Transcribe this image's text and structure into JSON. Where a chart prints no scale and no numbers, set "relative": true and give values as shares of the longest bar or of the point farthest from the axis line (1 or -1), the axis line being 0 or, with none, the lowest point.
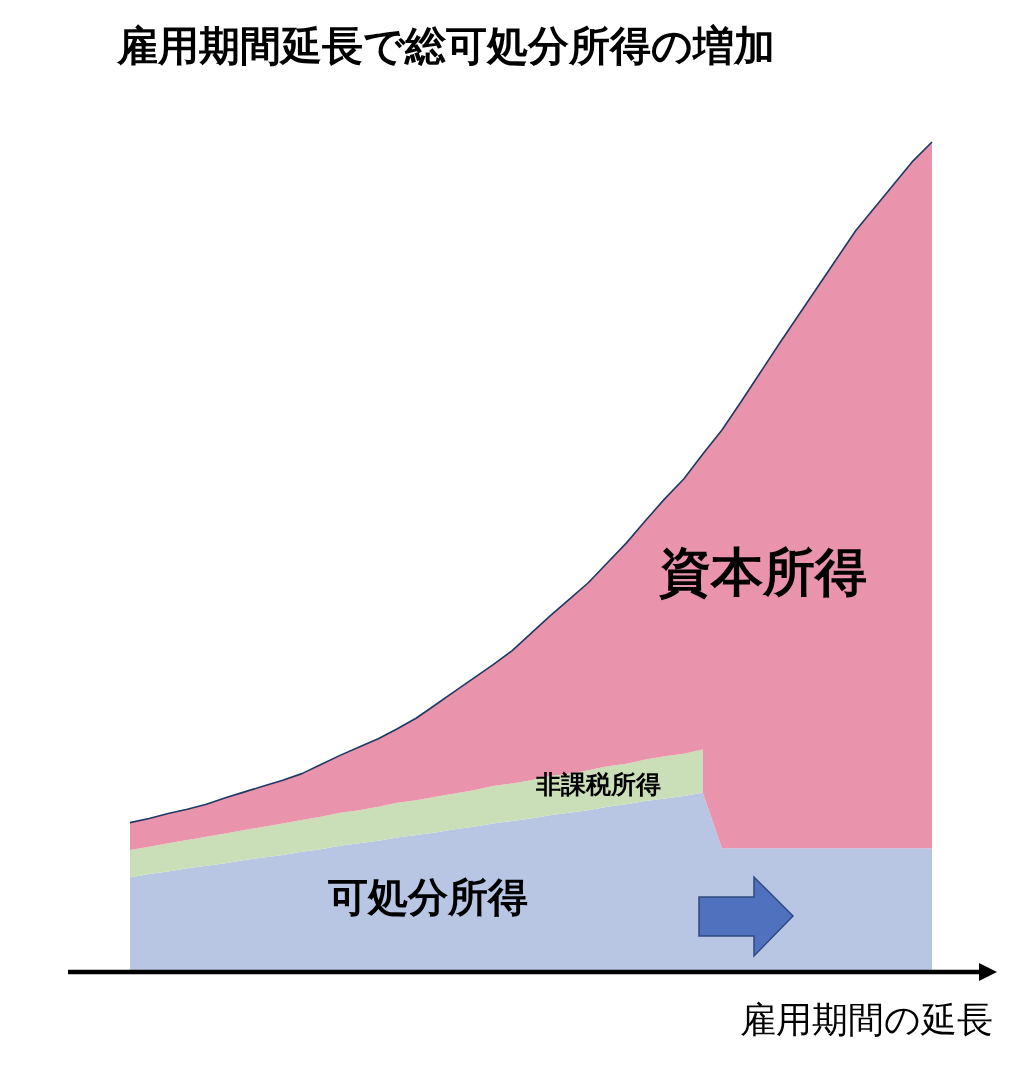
{
  "chart_data": {
    "type": "area",
    "title": "雇用期間延長で総可処分所得の増加",
    "xlabel": "雇用期間の延長",
    "relative": true,
    "stacked": true,
    "categories": [
      null,
      null,
      null,
      null,
      null,
      null,
      null,
      null,
      null,
      null,
      null,
      null,
      null,
      null,
      null,
      null,
      null,
      null,
      null,
      null,
      null,
      null,
      null,
      null,
      null,
      null,
      null,
      null,
      null,
      null,
      null,
      null,
      null,
      null,
      null,
      null,
      null,
      null,
      null,
      null,
      null,
      null,
      null
    ],
    "series": [
      {
        "name": "可処分所得",
        "color": "#b8c6e4",
        "values": [
          0.114,
          0.118,
          0.121,
          0.125,
          0.128,
          0.131,
          0.135,
          0.138,
          0.141,
          0.145,
          0.148,
          0.152,
          0.155,
          0.158,
          0.162,
          0.165,
          0.168,
          0.172,
          0.175,
          0.179,
          0.182,
          0.185,
          0.189,
          0.192,
          0.195,
          0.199,
          0.202,
          0.206,
          0.209,
          0.212,
          0.216,
          0.149,
          0.149,
          0.149,
          0.149,
          0.149,
          0.149,
          0.149,
          0.149,
          0.149,
          0.149,
          0.149,
          0.149
        ]
      },
      {
        "name": "非課税所得",
        "color": "#cadfb7",
        "values": [
          0.033,
          0.033,
          0.034,
          0.034,
          0.035,
          0.036,
          0.036,
          0.037,
          0.038,
          0.038,
          0.039,
          0.04,
          0.04,
          0.041,
          0.042,
          0.042,
          0.043,
          0.043,
          0.044,
          0.045,
          0.045,
          0.046,
          0.047,
          0.047,
          0.048,
          0.049,
          0.049,
          0.05,
          0.051,
          0.051,
          0.052,
          null,
          null,
          null,
          null,
          null,
          null,
          null,
          null,
          null,
          null,
          null,
          null
        ]
      },
      {
        "name": "資本所得",
        "color": "#e994ac",
        "values": [
          0.033,
          0.034,
          0.036,
          0.037,
          0.039,
          0.043,
          0.046,
          0.049,
          0.052,
          0.056,
          0.063,
          0.069,
          0.076,
          0.082,
          0.089,
          0.099,
          0.111,
          0.123,
          0.135,
          0.146,
          0.16,
          0.177,
          0.193,
          0.21,
          0.226,
          0.245,
          0.266,
          0.288,
          0.31,
          0.331,
          0.356,
          0.504,
          0.538,
          0.573,
          0.608,
          0.642,
          0.676,
          0.71,
          0.744,
          0.772,
          0.8,
          0.828,
          0.851
        ]
      }
    ]
  }
}
